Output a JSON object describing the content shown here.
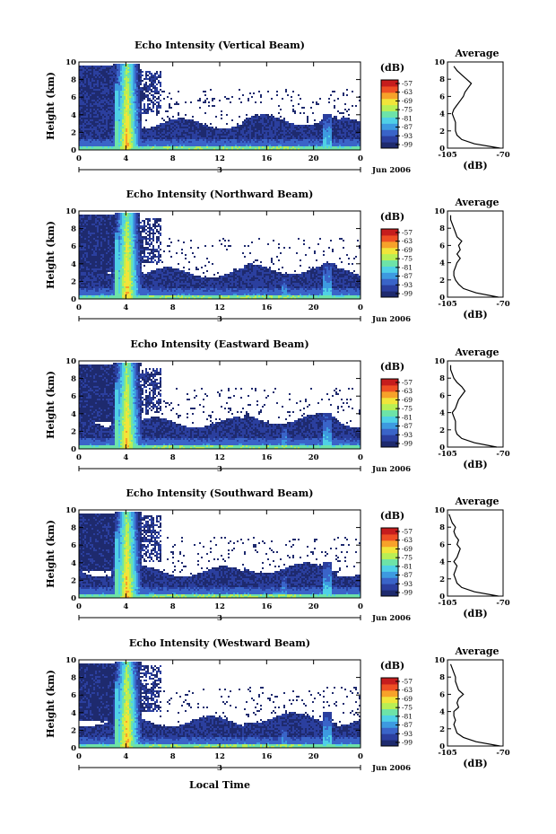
{
  "colors": [
    "#1e2a6e",
    "#2b3f9e",
    "#3a64c8",
    "#3d9ae0",
    "#4fd0e6",
    "#6de3a8",
    "#b8ef55",
    "#f1e53a",
    "#f7a22a",
    "#ee4f24",
    "#c61d1d"
  ],
  "chart_data": [
    {
      "type": "heatmap",
      "title": "Echo Intensity (Vertical Beam)",
      "ylabel": "Height (km)",
      "yticks": [
        "0",
        "2",
        "4",
        "6",
        "8",
        "10"
      ],
      "xticks": [
        "0",
        "4",
        "8",
        "12",
        "16",
        "20",
        "0"
      ],
      "day_label": "3",
      "month_label": "Jun 2006",
      "colorbar_unit": "(dB)",
      "colorbar_ticks": [
        "-57",
        "-63",
        "-69",
        "-75",
        "-81",
        "-87",
        "-93",
        "-99"
      ],
      "ylim": [
        0,
        10
      ],
      "xlim": [
        0,
        24
      ],
      "profile": {
        "title": "Average",
        "xlabel": "(dB)",
        "xticks": [
          "-105",
          "-70"
        ],
        "yticks": [
          "0",
          "2",
          "4",
          "6",
          "8",
          "10"
        ],
        "xlim": [
          -105,
          -70
        ],
        "heights": [
          0,
          0.5,
          1,
          1.5,
          2,
          2.5,
          3,
          3.5,
          4,
          4.5,
          5,
          5.5,
          6,
          6.5,
          7,
          7.5,
          8,
          8.5,
          9,
          9.5
        ],
        "values": [
          -72,
          -88,
          -96,
          -99,
          -100,
          -100,
          -100,
          -101,
          -102,
          -101,
          -99,
          -97,
          -95,
          -94,
          -92,
          -90,
          -93,
          -96,
          -99,
          -101
        ]
      }
    },
    {
      "type": "heatmap",
      "title": "Echo Intensity (Northward Beam)",
      "ylabel": "Height (km)",
      "yticks": [
        "0",
        "2",
        "4",
        "6",
        "8",
        "10"
      ],
      "xticks": [
        "0",
        "4",
        "8",
        "12",
        "16",
        "20",
        "0"
      ],
      "day_label": "3",
      "month_label": "Jun 2006",
      "colorbar_unit": "(dB)",
      "colorbar_ticks": [
        "-57",
        "-63",
        "-69",
        "-75",
        "-81",
        "-87",
        "-93",
        "-99"
      ],
      "ylim": [
        0,
        10
      ],
      "xlim": [
        0,
        24
      ],
      "profile": {
        "title": "Average",
        "xlabel": "(dB)",
        "xticks": [
          "-105",
          "-70"
        ],
        "yticks": [
          "0",
          "2",
          "4",
          "6",
          "8",
          "10"
        ],
        "xlim": [
          -105,
          -70
        ],
        "heights": [
          0,
          0.5,
          1,
          1.5,
          2,
          2.5,
          3,
          3.5,
          4,
          4.5,
          5,
          5.5,
          6,
          6.5,
          7,
          7.5,
          8,
          8.5,
          9,
          9.5
        ],
        "values": [
          -73,
          -87,
          -95,
          -98,
          -100,
          -101,
          -101,
          -100,
          -99,
          -97,
          -99,
          -97,
          -98,
          -96,
          -99,
          -100,
          -101,
          -102,
          -103,
          -103
        ]
      }
    },
    {
      "type": "heatmap",
      "title": "Echo Intensity (Eastward Beam)",
      "ylabel": "Height (km)",
      "yticks": [
        "0",
        "2",
        "4",
        "6",
        "8",
        "10"
      ],
      "xticks": [
        "0",
        "4",
        "8",
        "12",
        "16",
        "20",
        "0"
      ],
      "day_label": "3",
      "month_label": "Jun 2006",
      "colorbar_unit": "(dB)",
      "colorbar_ticks": [
        "-57",
        "-63",
        "-69",
        "-75",
        "-81",
        "-87",
        "-93",
        "-99"
      ],
      "ylim": [
        0,
        10
      ],
      "xlim": [
        0,
        24
      ],
      "profile": {
        "title": "Average",
        "xlabel": "(dB)",
        "xticks": [
          "-105",
          "-70"
        ],
        "yticks": [
          "0",
          "2",
          "4",
          "6",
          "8",
          "10"
        ],
        "xlim": [
          -105,
          -70
        ],
        "heights": [
          0,
          0.5,
          1,
          1.5,
          2,
          2.5,
          3,
          3.5,
          4,
          4.5,
          5,
          5.5,
          6,
          6.5,
          7,
          7.5,
          8,
          8.5,
          9,
          9.5
        ],
        "values": [
          -74,
          -88,
          -96,
          -99,
          -100,
          -100,
          -100,
          -101,
          -102,
          -100,
          -99,
          -98,
          -96,
          -94,
          -96,
          -99,
          -101,
          -102,
          -103,
          -103
        ]
      }
    },
    {
      "type": "heatmap",
      "title": "Echo Intensity (Southward Beam)",
      "ylabel": "Height (km)",
      "yticks": [
        "0",
        "2",
        "4",
        "6",
        "8",
        "10"
      ],
      "xticks": [
        "0",
        "4",
        "8",
        "12",
        "16",
        "20",
        "0"
      ],
      "day_label": "3",
      "month_label": "Jun 2006",
      "colorbar_unit": "(dB)",
      "colorbar_ticks": [
        "-57",
        "-63",
        "-69",
        "-75",
        "-81",
        "-87",
        "-93",
        "-99"
      ],
      "ylim": [
        0,
        10
      ],
      "xlim": [
        0,
        24
      ],
      "profile": {
        "title": "Average",
        "xlabel": "(dB)",
        "xticks": [
          "-105",
          "-70"
        ],
        "yticks": [
          "0",
          "2",
          "4",
          "6",
          "8",
          "10"
        ],
        "xlim": [
          -105,
          -70
        ],
        "heights": [
          0,
          0.5,
          1,
          1.5,
          2,
          2.5,
          3,
          3.5,
          4,
          4.5,
          5,
          5.5,
          6,
          6.5,
          7,
          7.5,
          8,
          8.5,
          9,
          9.5
        ],
        "values": [
          -73,
          -88,
          -96,
          -99,
          -100,
          -101,
          -100,
          -99,
          -101,
          -99,
          -98,
          -97,
          -99,
          -98,
          -100,
          -101,
          -100,
          -102,
          -103,
          -104
        ]
      }
    },
    {
      "type": "heatmap",
      "title": "Echo Intensity (Westward Beam)",
      "ylabel": "Height (km)",
      "yticks": [
        "0",
        "2",
        "4",
        "6",
        "8",
        "10"
      ],
      "xticks": [
        "0",
        "4",
        "8",
        "12",
        "16",
        "20",
        "0"
      ],
      "day_label": "3",
      "month_label": "Jun 2006",
      "colorbar_unit": "(dB)",
      "colorbar_ticks": [
        "-57",
        "-63",
        "-69",
        "-75",
        "-81",
        "-87",
        "-93",
        "-99"
      ],
      "ylim": [
        0,
        10
      ],
      "xlim": [
        0,
        24
      ],
      "profile": {
        "title": "Average",
        "xlabel": "(dB)",
        "xticks": [
          "-105",
          "-70"
        ],
        "yticks": [
          "0",
          "2",
          "4",
          "6",
          "8",
          "10"
        ],
        "xlim": [
          -105,
          -70
        ],
        "heights": [
          0,
          0.5,
          1,
          1.5,
          2,
          2.5,
          3,
          3.5,
          4,
          4.5,
          5,
          5.5,
          6,
          6.5,
          7,
          7.5,
          8,
          8.5,
          9,
          9.5
        ],
        "values": [
          -72,
          -87,
          -95,
          -99,
          -100,
          -101,
          -100,
          -101,
          -101,
          -98,
          -99,
          -98,
          -95,
          -98,
          -99,
          -100,
          -100,
          -101,
          -102,
          -103
        ]
      }
    }
  ],
  "bottom_xlabel": "Local Time"
}
